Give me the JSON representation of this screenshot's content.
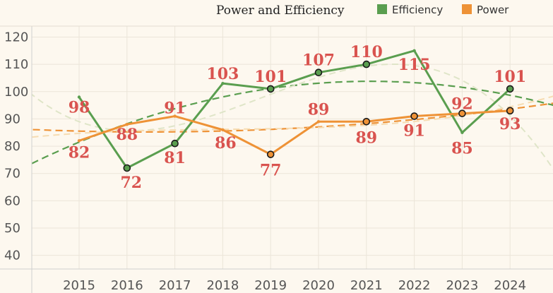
{
  "chart_data": {
    "type": "line",
    "title": "Power and Efficiency",
    "categories": [
      "2015",
      "2016",
      "2017",
      "2018",
      "2019",
      "2020",
      "2021",
      "2022",
      "2023",
      "2024"
    ],
    "ylim": [
      35,
      124
    ],
    "yticks": [
      40,
      50,
      60,
      70,
      80,
      90,
      100,
      110,
      120
    ],
    "grid": true,
    "legend_position": "top-right",
    "series": [
      {
        "name": "Efficiency",
        "color": "#5a9e4f",
        "values": [
          98,
          72,
          81,
          103,
          101,
          107,
          110,
          115,
          85,
          101
        ],
        "circled": [
          false,
          true,
          true,
          false,
          true,
          true,
          true,
          false,
          false,
          true
        ]
      },
      {
        "name": "Power",
        "color": "#ee9236",
        "values": [
          82,
          88,
          91,
          86,
          77,
          89,
          89,
          91,
          92,
          93
        ],
        "circled": [
          false,
          false,
          false,
          false,
          true,
          false,
          true,
          true,
          true,
          true
        ]
      }
    ],
    "trend_lines": [
      {
        "series": "Efficiency",
        "kind": "quadratic",
        "style": "dashed",
        "color": "#5a9e4f"
      },
      {
        "series": "Power",
        "kind": "quadratic",
        "style": "dashed",
        "color": "#ee9236"
      },
      {
        "series": "Efficiency",
        "kind": "cubic",
        "style": "dashed-light",
        "color": "#dfe5c8"
      },
      {
        "series": "Power",
        "kind": "cubic",
        "style": "dashed-light",
        "color": "#f6dcb2"
      }
    ]
  }
}
